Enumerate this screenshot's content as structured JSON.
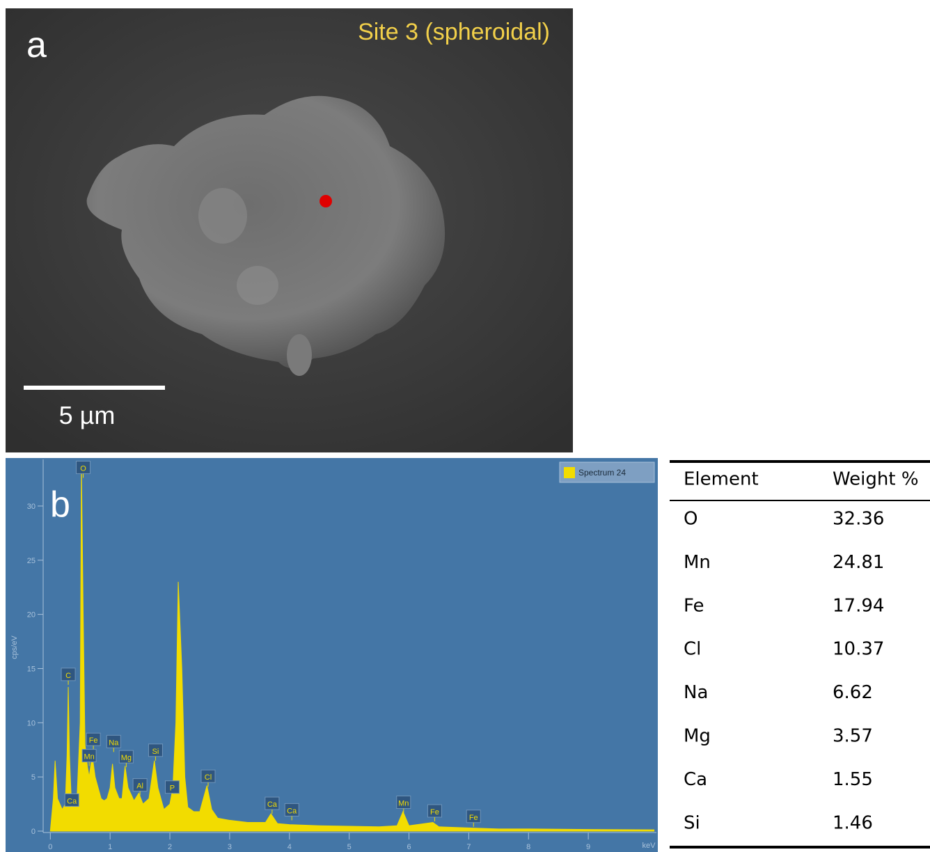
{
  "panel_a": {
    "label": "a",
    "title": "Site 3 (spheroidal)",
    "scale_bar": "5 µm"
  },
  "chart_data": {
    "type": "area",
    "panel_label": "b",
    "y_label": "cps/eV",
    "x_unit_label": "keV",
    "xlim": [
      -0.12,
      10.14
    ],
    "ylim": [
      0,
      34.3
    ],
    "xticks": [
      0,
      1,
      2,
      3,
      4,
      5,
      6,
      7,
      8,
      9
    ],
    "yticks": [
      0,
      5,
      10,
      15,
      20,
      25,
      30
    ],
    "x": [
      0,
      0.05,
      0.08,
      0.12,
      0.2,
      0.25,
      0.28,
      0.3,
      0.32,
      0.35,
      0.4,
      0.45,
      0.5,
      0.52,
      0.55,
      0.58,
      0.62,
      0.65,
      0.7,
      0.75,
      0.8,
      0.85,
      0.9,
      0.95,
      1.0,
      1.04,
      1.08,
      1.15,
      1.2,
      1.25,
      1.3,
      1.4,
      1.48,
      1.55,
      1.65,
      1.74,
      1.8,
      1.9,
      2.0,
      2.05,
      2.1,
      2.14,
      2.2,
      2.25,
      2.3,
      2.4,
      2.5,
      2.62,
      2.7,
      2.8,
      3.0,
      3.3,
      3.6,
      3.69,
      3.8,
      4.0,
      4.5,
      5.0,
      5.5,
      5.8,
      5.9,
      6.0,
      6.4,
      6.5,
      7.0,
      7.5,
      8.0,
      9.0,
      10.1
    ],
    "series": [
      {
        "name": "Spectrum 24",
        "color": "#f2dc00",
        "values": [
          0,
          3,
          6.5,
          3,
          2,
          2.5,
          7,
          13.3,
          7,
          3,
          2.5,
          3.5,
          10,
          34,
          20,
          8,
          6,
          5,
          7,
          5,
          4,
          3,
          2.8,
          3,
          4,
          6.2,
          4,
          3,
          3,
          6,
          4,
          2.8,
          3.5,
          2.5,
          3,
          6.5,
          4,
          2,
          2.5,
          4,
          10,
          23,
          15,
          5,
          2.2,
          1.8,
          1.8,
          4.2,
          2,
          1.2,
          1,
          0.8,
          0.8,
          1.6,
          0.7,
          0.6,
          0.5,
          0.45,
          0.4,
          0.5,
          1.8,
          0.5,
          0.8,
          0.4,
          0.3,
          0.2,
          0.2,
          0.15,
          0.12
        ]
      }
    ],
    "peak_labels": [
      {
        "label": "O",
        "x": 0.55,
        "y": 33.5
      },
      {
        "label": "C",
        "x": 0.3,
        "y": 14.4
      },
      {
        "label": "Ca",
        "x": 0.36,
        "y": 2.8
      },
      {
        "label": "Fe",
        "x": 0.72,
        "y": 8.4
      },
      {
        "label": "Mn",
        "x": 0.65,
        "y": 6.9
      },
      {
        "label": "Na",
        "x": 1.06,
        "y": 8.2
      },
      {
        "label": "Mg",
        "x": 1.27,
        "y": 6.8
      },
      {
        "label": "Al",
        "x": 1.5,
        "y": 4.2
      },
      {
        "label": "Si",
        "x": 1.76,
        "y": 7.4
      },
      {
        "label": "P",
        "x": 2.04,
        "y": 4.0
      },
      {
        "label": "Cl",
        "x": 2.64,
        "y": 5.0
      },
      {
        "label": "Ca",
        "x": 3.71,
        "y": 2.5
      },
      {
        "label": "Ca",
        "x": 4.04,
        "y": 1.9
      },
      {
        "label": "Mn",
        "x": 5.91,
        "y": 2.6
      },
      {
        "label": "Fe",
        "x": 6.43,
        "y": 1.8
      },
      {
        "label": "Fe",
        "x": 7.08,
        "y": 1.3
      }
    ]
  },
  "table": {
    "header": [
      "Element",
      "Weight %"
    ],
    "rows": [
      [
        "O",
        "32.36"
      ],
      [
        "Mn",
        "24.81"
      ],
      [
        "Fe",
        "17.94"
      ],
      [
        "Cl",
        "10.37"
      ],
      [
        "Na",
        "6.62"
      ],
      [
        "Mg",
        "3.57"
      ],
      [
        "Ca",
        "1.55"
      ],
      [
        "Si",
        "1.46"
      ]
    ]
  }
}
